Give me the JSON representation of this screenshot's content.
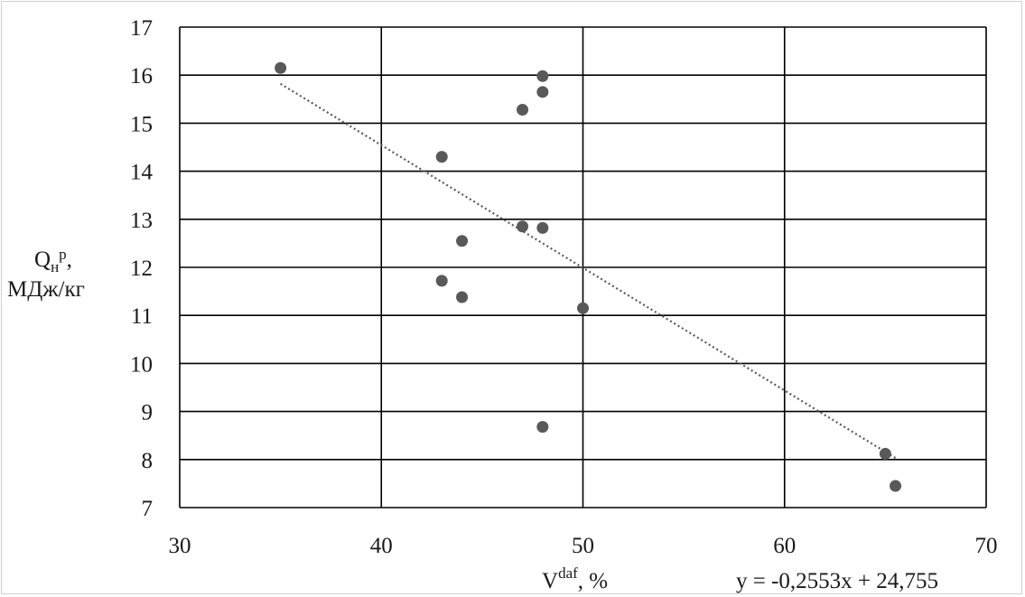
{
  "chart_data": {
    "type": "scatter",
    "title": "",
    "xlabel": {
      "main": "V",
      "sup": "daf",
      "rest": ", %"
    },
    "ylabel": {
      "main": "Q",
      "sub": "н",
      "sup": "р",
      "rest": ",",
      "line2": "МДж/кг"
    },
    "xlim": [
      30,
      70
    ],
    "ylim": [
      7,
      17
    ],
    "x_ticks": [
      "30",
      "40",
      "50",
      "60",
      "70"
    ],
    "y_ticks": [
      "7",
      "8",
      "9",
      "10",
      "11",
      "12",
      "13",
      "14",
      "15",
      "16",
      "17"
    ],
    "grid": true,
    "legend": "none",
    "colors": {
      "points": "#595959",
      "gridlines": "#000000",
      "trendline": "#595959"
    },
    "series": [
      {
        "x": [
          35,
          43,
          43,
          44,
          44,
          47,
          47,
          48,
          48,
          48,
          48,
          50,
          65,
          65.5
        ],
        "y": [
          16.15,
          14.3,
          11.72,
          12.55,
          11.38,
          15.28,
          12.85,
          15.98,
          15.65,
          12.82,
          8.68,
          11.15,
          8.12,
          7.45
        ]
      }
    ],
    "trendline": {
      "type": "linear",
      "slope": -0.2553,
      "intercept": 24.755,
      "x_range": [
        35,
        65.5
      ],
      "equation_label": "y = -0,2553x + 24,755"
    }
  }
}
